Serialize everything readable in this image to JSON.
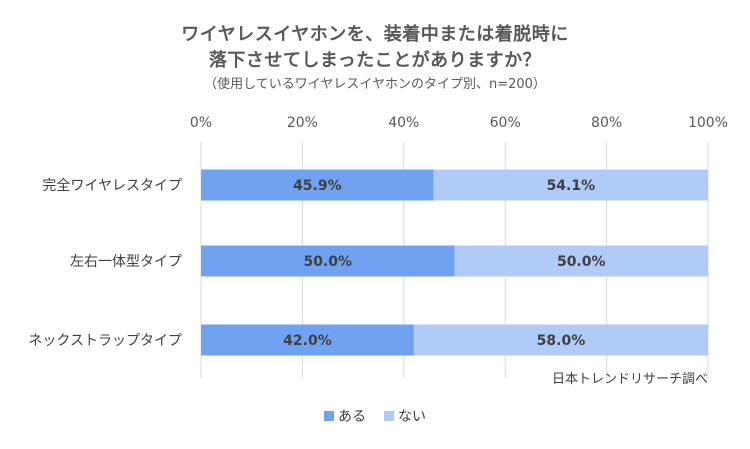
{
  "chart_data": {
    "type": "bar",
    "orientation": "horizontal",
    "stacked": true,
    "title_lines": [
      "ワイヤレスイヤホンを、装着中または着脱時に",
      "落下させてしまったことがありますか？"
    ],
    "subtitle": "（使用しているワイヤレスイヤホンのタイプ別、n=200）",
    "categories": [
      "完全ワイヤレスタイプ",
      "左右一体型タイプ",
      "ネックストラップタイプ"
    ],
    "series": [
      {
        "name": "ある",
        "values": [
          45.9,
          50.0,
          42.0
        ],
        "labels": [
          "45.9%",
          "50.0%",
          "42.0%"
        ],
        "color": "#6fa3f2"
      },
      {
        "name": "ない",
        "values": [
          54.1,
          50.0,
          58.0
        ],
        "labels": [
          "54.1%",
          "50.0%",
          "58.0%"
        ],
        "color": "#b0cbf7"
      }
    ],
    "x_ticks": [
      "0%",
      "20%",
      "40%",
      "60%",
      "80%",
      "100%"
    ],
    "xlim": [
      0,
      100
    ],
    "grid": true,
    "legend_position": "bottom",
    "source": "日本トレンドリサーチ調べ"
  }
}
